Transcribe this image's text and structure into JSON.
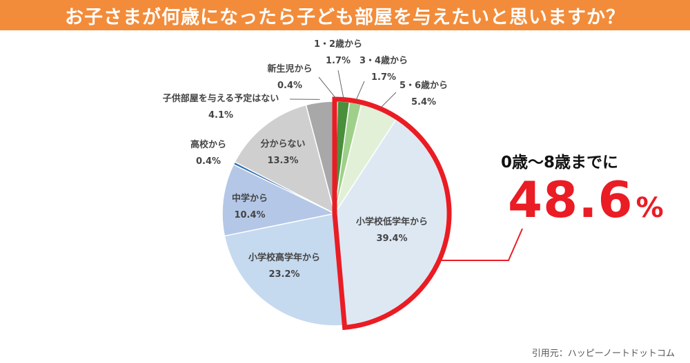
{
  "header": {
    "title": "お子さまが何歳になったら子ども部屋を与えたいと思いますか？"
  },
  "callout": {
    "heading": "0歳〜8歳までに",
    "value": "48.6",
    "unit": "%"
  },
  "source": "引用元：ハッピーノートドットコム",
  "colors": {
    "title_bg": "#f28c3a",
    "highlight": "#ea1c24"
  },
  "chart_data": {
    "type": "pie",
    "title": "",
    "slices": [
      {
        "label": "新生児から",
        "value": 0.4,
        "value_label": "0.4%",
        "color": "#2e6b2b"
      },
      {
        "label": "1・2歳から",
        "value": 1.7,
        "value_label": "1.7%",
        "color": "#4a8f3c"
      },
      {
        "label": "3・4歳から",
        "value": 1.7,
        "value_label": "1.7%",
        "color": "#9fd08a"
      },
      {
        "label": "5・6歳から",
        "value": 5.4,
        "value_label": "5.4%",
        "color": "#e2f0d8"
      },
      {
        "label": "小学校低学年から",
        "value": 39.4,
        "value_label": "39.4%",
        "color": "#dde8f3"
      },
      {
        "label": "小学校高学年から",
        "value": 23.2,
        "value_label": "23.2%",
        "color": "#c5d9ef"
      },
      {
        "label": "中学から",
        "value": 10.4,
        "value_label": "10.4%",
        "color": "#b4c7e7"
      },
      {
        "label": "高校から",
        "value": 0.4,
        "value_label": "0.4%",
        "color": "#2f6fb4"
      },
      {
        "label": "分からない",
        "value": 13.3,
        "value_label": "13.3%",
        "color": "#cfcfcf"
      },
      {
        "label": "子供部屋を与える予定はない",
        "value": 4.1,
        "value_label": "4.1%",
        "color": "#a8a8a8"
      }
    ],
    "highlighted_group": [
      "新生児から",
      "1・2歳から",
      "3・4歳から",
      "5・6歳から",
      "小学校低学年から"
    ],
    "highlighted_total": 48.6
  }
}
